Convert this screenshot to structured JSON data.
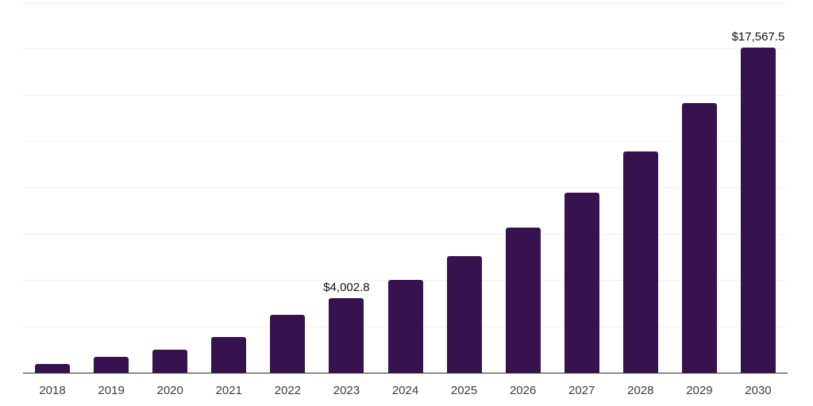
{
  "page": {
    "background": "#ffffff"
  },
  "chart_data": {
    "type": "bar",
    "title": "",
    "xlabel": "",
    "ylabel": "",
    "legend": "none",
    "grid": "horizontal",
    "y_axis_tick_labels_visible": false,
    "ylim": [
      0,
      20000
    ],
    "gridline_step": 2500,
    "categories": [
      "2018",
      "2019",
      "2020",
      "2021",
      "2022",
      "2023",
      "2024",
      "2025",
      "2026",
      "2027",
      "2028",
      "2029",
      "2030"
    ],
    "values": [
      460,
      855,
      1240,
      1925,
      3125,
      4002.8,
      4990,
      6295,
      7835,
      9720,
      11945,
      14560,
      17567.5
    ],
    "value_labels": [
      "",
      "",
      "",
      "",
      "",
      "$4,002.8",
      "",
      "",
      "",
      "",
      "",
      "",
      "$17,567.5"
    ],
    "colors": {
      "bar": "#36134f",
      "axis_line": "#2b2b2b",
      "gridline": "#f0f0f0",
      "tick_label": "#3d3d3d",
      "value_label": "#101010",
      "background": "#ffffff"
    }
  }
}
